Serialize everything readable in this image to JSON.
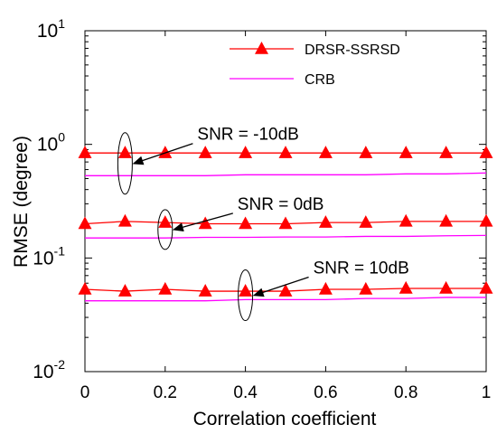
{
  "chart_data": {
    "type": "line",
    "xlabel": "Correlation coefficient",
    "ylabel": "RMSE (degree)",
    "xlim": [
      0,
      1
    ],
    "ylim": [
      0.01,
      10
    ],
    "yscale": "log",
    "grid": false,
    "legend_position": "top-right",
    "x_ticks": [
      "0",
      "0.2",
      "0.4",
      "0.6",
      "0.8",
      "1"
    ],
    "y_ticks": [
      {
        "value": 0.01,
        "base": "10",
        "exp": "-2"
      },
      {
        "value": 0.1,
        "base": "10",
        "exp": "-1"
      },
      {
        "value": 1,
        "base": "10",
        "exp": "0"
      },
      {
        "value": 10,
        "base": "10",
        "exp": "1"
      }
    ],
    "x": [
      0,
      0.1,
      0.2,
      0.3,
      0.4,
      0.5,
      0.6,
      0.7,
      0.8,
      0.9,
      1.0
    ],
    "series": [
      {
        "name": "DRSR-SSRSD",
        "group": "SNR = -10dB",
        "marker": "triangle",
        "color": "#ff0000",
        "values": [
          0.84,
          0.84,
          0.84,
          0.84,
          0.84,
          0.84,
          0.84,
          0.84,
          0.84,
          0.84,
          0.84
        ]
      },
      {
        "name": "CRB",
        "group": "SNR = -10dB",
        "marker": "none",
        "color": "#ff00ff",
        "values": [
          0.53,
          0.53,
          0.53,
          0.53,
          0.54,
          0.54,
          0.54,
          0.54,
          0.55,
          0.55,
          0.56
        ]
      },
      {
        "name": "DRSR-SSRSD",
        "group": "SNR = 0dB",
        "marker": "triangle",
        "color": "#ff0000",
        "values": [
          0.2,
          0.21,
          0.205,
          0.2,
          0.2,
          0.2,
          0.205,
          0.205,
          0.21,
          0.21,
          0.21
        ]
      },
      {
        "name": "CRB",
        "group": "SNR = 0dB",
        "marker": "none",
        "color": "#ff00ff",
        "values": [
          0.15,
          0.15,
          0.15,
          0.152,
          0.152,
          0.153,
          0.153,
          0.155,
          0.155,
          0.157,
          0.158
        ]
      },
      {
        "name": "DRSR-SSRSD",
        "group": "SNR = 10dB",
        "marker": "triangle",
        "color": "#ff0000",
        "values": [
          0.053,
          0.051,
          0.053,
          0.051,
          0.051,
          0.051,
          0.053,
          0.053,
          0.054,
          0.054,
          0.054
        ]
      },
      {
        "name": "CRB",
        "group": "SNR = 10dB",
        "marker": "none",
        "color": "#ff00ff",
        "values": [
          0.042,
          0.042,
          0.042,
          0.042,
          0.043,
          0.043,
          0.043,
          0.044,
          0.044,
          0.045,
          0.045
        ]
      }
    ],
    "legend": [
      {
        "label": "DRSR-SSRSD",
        "marker": "triangle",
        "color": "#ff0000"
      },
      {
        "label": "CRB",
        "marker": "none",
        "color": "#ff00ff"
      }
    ],
    "annotations": [
      {
        "text": "SNR = -10dB",
        "target_x": 0.1,
        "target_y": 0.68
      },
      {
        "text": "SNR = 0dB",
        "target_x": 0.2,
        "target_y": 0.178
      },
      {
        "text": "SNR = 10dB",
        "target_x": 0.4,
        "target_y": 0.047
      }
    ]
  }
}
